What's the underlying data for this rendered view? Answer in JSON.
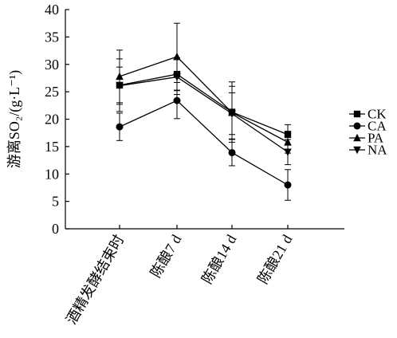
{
  "chart_data": {
    "type": "line",
    "ylabel": "游离SO₂/(g·L⁻¹)",
    "ylim": [
      0,
      40
    ],
    "yticks": [
      0,
      5,
      10,
      15,
      20,
      25,
      30,
      35,
      40
    ],
    "categories": [
      "酒精发酵结束时",
      "陈酿7 d",
      "陈酿14 d",
      "陈酿21 d"
    ],
    "legend_position": "right",
    "series": [
      {
        "name": "CK",
        "marker": "square",
        "values": [
          26.2,
          28.2,
          21.3,
          17.2
        ],
        "errors": [
          4.8,
          3.0,
          5.5,
          1.8
        ]
      },
      {
        "name": "CA",
        "marker": "circle",
        "values": [
          18.6,
          23.4,
          13.9,
          8.0
        ],
        "errors": [
          2.5,
          3.3,
          2.4,
          2.8
        ]
      },
      {
        "name": "PA",
        "marker": "triangle-up",
        "values": [
          27.8,
          31.4,
          21.2,
          15.8
        ],
        "errors": [
          4.8,
          6.1,
          4.8,
          2.0
        ]
      },
      {
        "name": "NA",
        "marker": "triangle-down",
        "values": [
          26.1,
          27.7,
          21.0,
          14.0
        ],
        "errors": [
          3.4,
          3.2,
          3.8,
          2.3
        ]
      }
    ]
  }
}
